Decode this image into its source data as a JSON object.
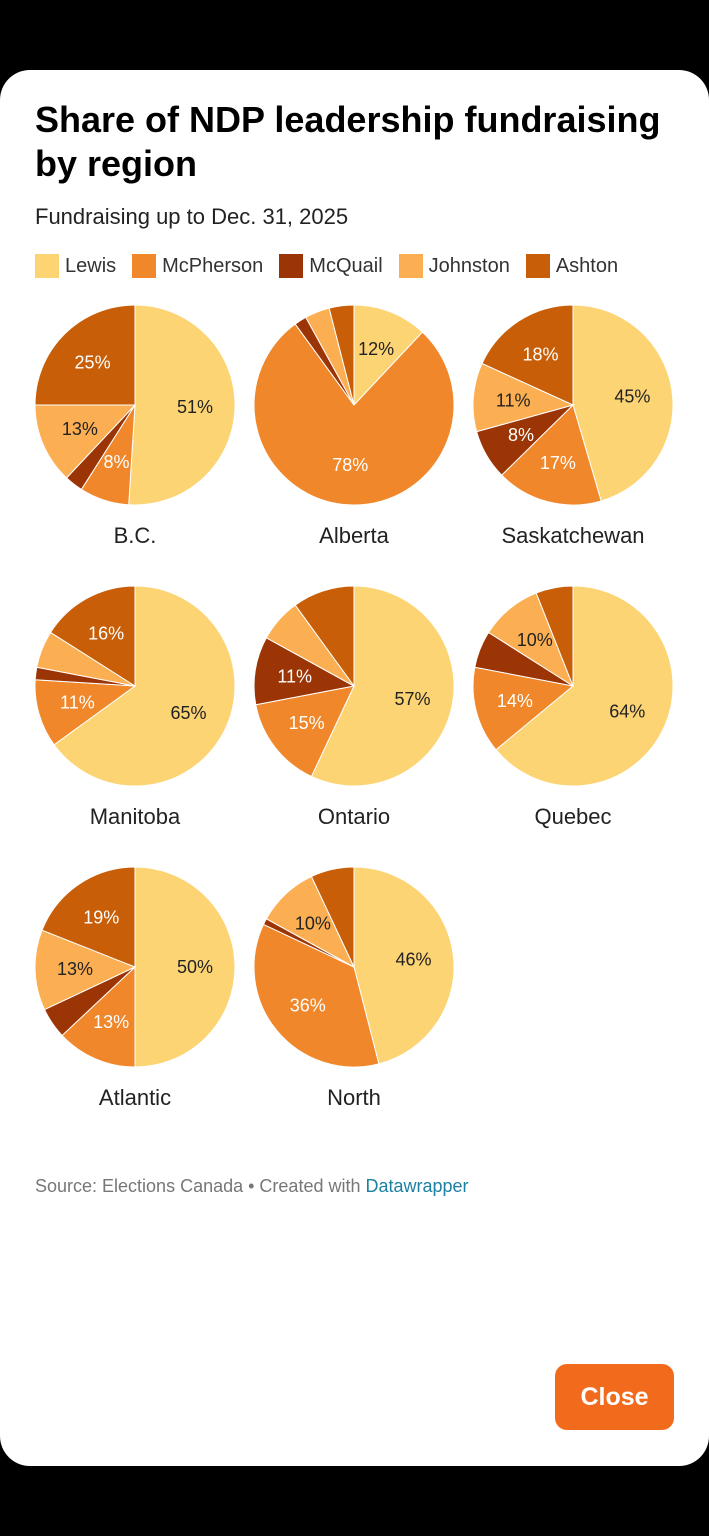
{
  "chart_data": {
    "type": "pie",
    "title": "Share of NDP leadership fundraising by region",
    "subtitle": "Fundraising up to Dec. 31, 2025",
    "legend": [
      {
        "name": "Lewis",
        "color": "#fdd474"
      },
      {
        "name": "McPherson",
        "color": "#f0872a"
      },
      {
        "name": "McQuail",
        "color": "#9c3505"
      },
      {
        "name": "Johnston",
        "color": "#fcae52"
      },
      {
        "name": "Ashton",
        "color": "#c85f08"
      }
    ],
    "pies": [
      {
        "name": "B.C.",
        "values": [
          51,
          8,
          3,
          13,
          25
        ],
        "labels": [
          "51%",
          "8%",
          "",
          "13%",
          "25%"
        ]
      },
      {
        "name": "Alberta",
        "values": [
          12,
          78,
          2,
          4,
          4
        ],
        "labels": [
          "12%",
          "78%",
          "",
          "",
          ""
        ]
      },
      {
        "name": "Saskatchewan",
        "values": [
          45,
          17,
          8,
          11,
          18
        ],
        "labels": [
          "45%",
          "17%",
          "8%",
          "11%",
          "18%"
        ]
      },
      {
        "name": "Manitoba",
        "values": [
          65,
          11,
          2,
          6,
          16
        ],
        "labels": [
          "65%",
          "11%",
          "",
          "",
          "16%"
        ]
      },
      {
        "name": "Ontario",
        "values": [
          57,
          15,
          11,
          7,
          10
        ],
        "labels": [
          "57%",
          "15%",
          "11%",
          "",
          ""
        ]
      },
      {
        "name": "Quebec",
        "values": [
          64,
          14,
          6,
          10,
          6
        ],
        "labels": [
          "64%",
          "14%",
          "",
          "10%",
          ""
        ]
      },
      {
        "name": "Atlantic",
        "values": [
          50,
          13,
          5,
          13,
          19
        ],
        "labels": [
          "50%",
          "13%",
          "",
          "13%",
          "19%"
        ]
      },
      {
        "name": "North",
        "values": [
          46,
          36,
          1,
          10,
          7
        ],
        "labels": [
          "46%",
          "36%",
          "",
          "10%",
          ""
        ]
      }
    ]
  },
  "footer": {
    "source": "Source: Elections Canada • Created with ",
    "link": "Datawrapper"
  },
  "close_label": "Close"
}
